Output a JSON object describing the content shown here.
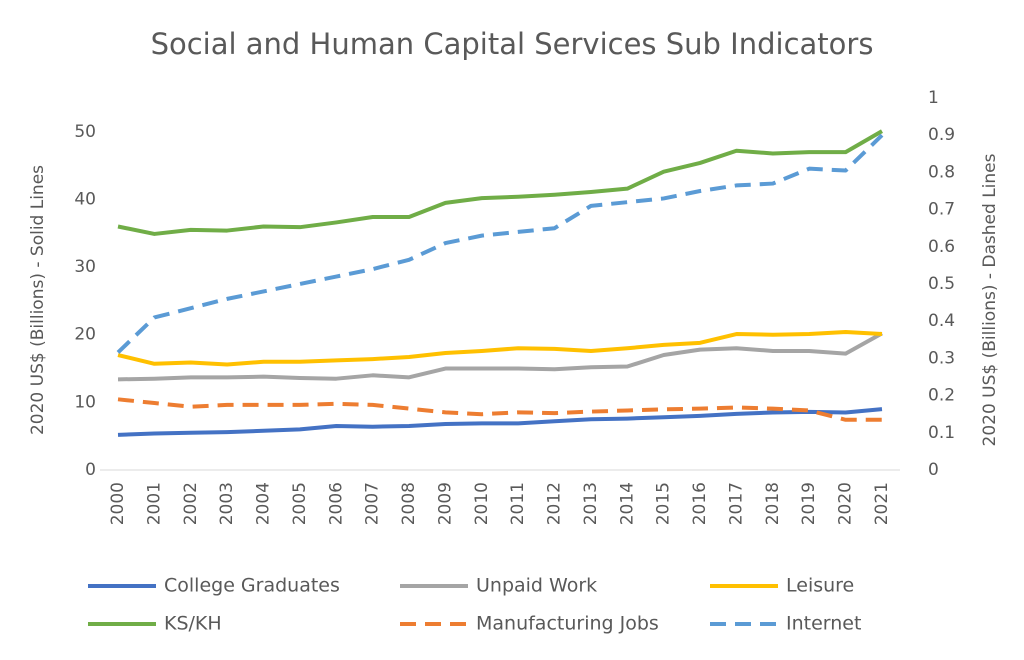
{
  "chart_data": {
    "type": "line",
    "title": "Social and Human Capital Services Sub Indicators",
    "y_label": "2020 US$ (Billions) - Solid Lines",
    "y2_label": "2020 US$ (Billions) - Dashed Lines",
    "categories": [
      "2000",
      "2001",
      "2002",
      "2003",
      "2004",
      "2005",
      "2006",
      "2007",
      "2008",
      "2009",
      "2010",
      "2011",
      "2012",
      "2013",
      "2014",
      "2015",
      "2016",
      "2017",
      "2018",
      "2019",
      "2020",
      "2021"
    ],
    "ylim": [
      0,
      55
    ],
    "yticks": [
      0,
      10,
      20,
      30,
      40,
      50
    ],
    "y2lim": [
      0,
      1
    ],
    "y2ticks": [
      0,
      0.1,
      0.2,
      0.3,
      0.4,
      0.5,
      0.6,
      0.7,
      0.8,
      0.9,
      1
    ],
    "grid": false,
    "series": [
      {
        "name": "College Graduates",
        "color": "#4472c4",
        "dashed": false,
        "values": [
          5.2,
          5.4,
          5.5,
          5.6,
          5.8,
          6.0,
          6.5,
          6.4,
          6.5,
          6.8,
          6.9,
          6.9,
          7.2,
          7.5,
          7.6,
          7.8,
          8.0,
          8.3,
          8.5,
          8.6,
          8.5,
          9.0
        ]
      },
      {
        "name": "Unpaid Work",
        "color": "#a5a5a5",
        "dashed": false,
        "values": [
          13.4,
          13.5,
          13.7,
          13.7,
          13.8,
          13.6,
          13.5,
          14.0,
          13.7,
          15.0,
          15.0,
          15.0,
          14.9,
          15.2,
          15.3,
          17.0,
          17.8,
          18.0,
          17.6,
          17.6,
          17.2,
          20.2
        ]
      },
      {
        "name": "Leisure",
        "color": "#ffc000",
        "dashed": false,
        "values": [
          17.0,
          15.7,
          15.9,
          15.6,
          16.0,
          16.0,
          16.2,
          16.4,
          16.7,
          17.3,
          17.6,
          18.0,
          17.9,
          17.6,
          18.0,
          18.5,
          18.8,
          20.1,
          20.0,
          20.1,
          20.4,
          20.1
        ]
      },
      {
        "name": "KS/KH",
        "color": "#70ad47",
        "dashed": false,
        "values": [
          36.0,
          34.9,
          35.5,
          35.4,
          36.0,
          35.9,
          36.6,
          37.4,
          37.4,
          39.5,
          40.2,
          40.4,
          40.7,
          41.1,
          41.6,
          44.1,
          45.4,
          47.2,
          46.8,
          47.0,
          47.0,
          50.1
        ]
      },
      {
        "name": "Manufacturing Jobs",
        "color": "#ed7d31",
        "dashed": true,
        "axis": "y2",
        "values": [
          0.19,
          0.18,
          0.17,
          0.175,
          0.175,
          0.175,
          0.178,
          0.175,
          0.165,
          0.155,
          0.15,
          0.155,
          0.153,
          0.157,
          0.16,
          0.163,
          0.165,
          0.168,
          0.165,
          0.16,
          0.135,
          0.135
        ]
      },
      {
        "name": "Internet",
        "color": "#5b9bd5",
        "dashed": true,
        "axis": "y2",
        "values": [
          0.316,
          0.41,
          0.435,
          0.46,
          0.48,
          0.5,
          0.52,
          0.54,
          0.565,
          0.61,
          0.63,
          0.64,
          0.65,
          0.71,
          0.72,
          0.73,
          0.75,
          0.765,
          0.77,
          0.81,
          0.805,
          0.9
        ]
      }
    ]
  }
}
